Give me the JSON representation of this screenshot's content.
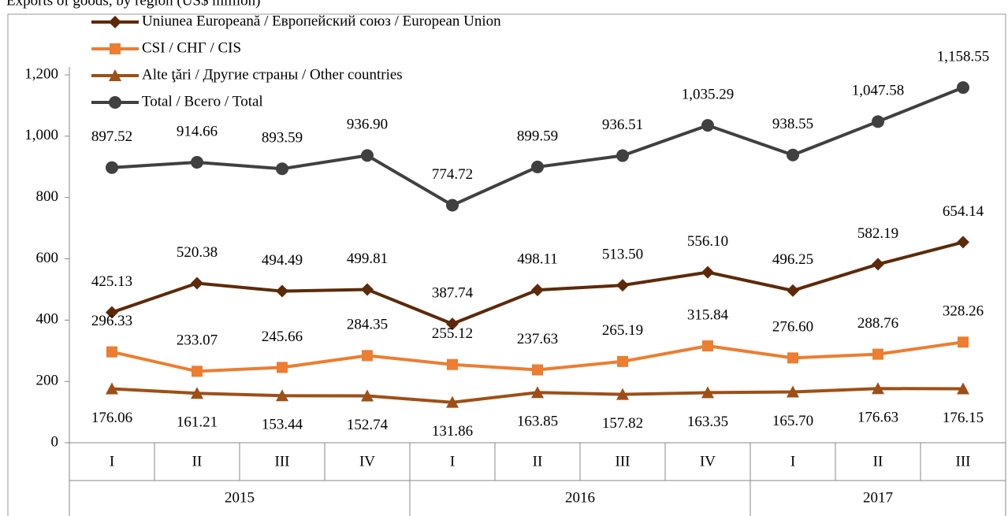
{
  "chart_data": {
    "type": "line",
    "title": "Exports of goods, by region (US$ million)",
    "categories": [
      "I",
      "II",
      "III",
      "IV",
      "I",
      "II",
      "III",
      "IV",
      "I",
      "II",
      "III"
    ],
    "groups": [
      {
        "label": "2015",
        "span": 4
      },
      {
        "label": "2016",
        "span": 4
      },
      {
        "label": "2017",
        "span": 3
      }
    ],
    "ylim": [
      0,
      1200
    ],
    "yticks": [
      0,
      200,
      400,
      600,
      800,
      {
        "value": 1000,
        "label": "1,000"
      },
      {
        "value": 1200,
        "label": "1,200"
      }
    ],
    "series": [
      {
        "name": "Uniunea Europeană / Европейский союз / European Union",
        "color": "#5c2a0a",
        "marker": "diamond",
        "label_pos": "above",
        "values": [
          425.13,
          520.38,
          494.49,
          499.81,
          387.74,
          498.11,
          513.5,
          556.1,
          496.25,
          582.19,
          654.14
        ],
        "value_labels": [
          "425.13",
          "520.38",
          "494.49",
          "499.81",
          "387.74",
          "498.11",
          "513.50",
          "556.10",
          "496.25",
          "582.19",
          "654.14"
        ]
      },
      {
        "name": "CSI / СНГ / CIS",
        "color": "#ed7d31",
        "marker": "square",
        "label_pos": "above",
        "values": [
          296.33,
          233.07,
          245.66,
          284.35,
          255.12,
          237.63,
          265.19,
          315.84,
          276.6,
          288.76,
          328.26
        ],
        "value_labels": [
          "296.33",
          "233.07",
          "245.66",
          "284.35",
          "255.12",
          "237.63",
          "265.19",
          "315.84",
          "276.60",
          "288.76",
          "328.26"
        ]
      },
      {
        "name": "Alte ţări / Другие страны / Other countries",
        "color": "#9e4f17",
        "marker": "triangle",
        "label_pos": "below",
        "values": [
          176.06,
          161.21,
          153.44,
          152.74,
          131.86,
          163.85,
          157.82,
          163.35,
          165.7,
          176.63,
          176.15
        ],
        "value_labels": [
          "176.06",
          "161.21",
          "153.44",
          "152.74",
          "131.86",
          "163.85",
          "157.82",
          "163.35",
          "165.70",
          "176.63",
          "176.15"
        ]
      },
      {
        "name": "Total / Всего / Total",
        "color": "#404040",
        "marker": "circle",
        "label_pos": "above",
        "values": [
          897.52,
          914.66,
          893.59,
          936.9,
          774.72,
          899.59,
          936.51,
          1035.29,
          938.55,
          1047.58,
          1158.55
        ],
        "value_labels": [
          "897.52",
          "914.66",
          "893.59",
          "936.90",
          "774.72",
          "899.59",
          "936.51",
          "1,035.29",
          "938.55",
          "1,047.58",
          "1,158.55"
        ]
      }
    ]
  }
}
